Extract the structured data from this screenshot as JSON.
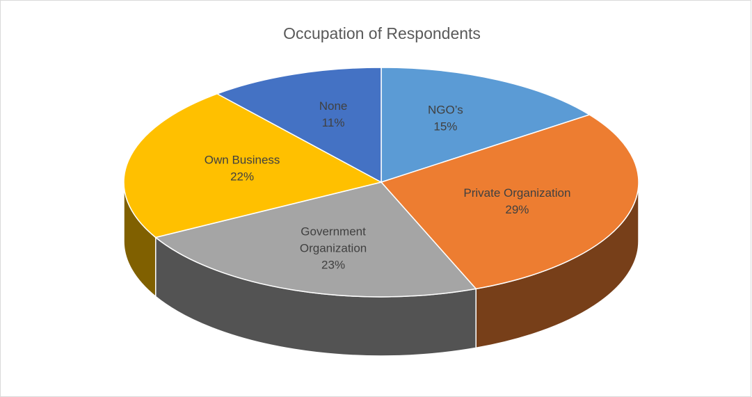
{
  "chart_data": {
    "type": "pie",
    "title": "Occupation of Respondents",
    "categories": [
      "NGO’s",
      "Private Organization",
      "Government Organization",
      "Own Business",
      "None"
    ],
    "values": [
      15,
      29,
      23,
      22,
      11
    ],
    "value_labels": [
      "15%",
      "29%",
      "23%",
      "22%",
      "11%"
    ],
    "colors": [
      "#5b9bd5",
      "#ed7d31",
      "#a5a5a5",
      "#ffc000",
      "#4472c4"
    ]
  }
}
